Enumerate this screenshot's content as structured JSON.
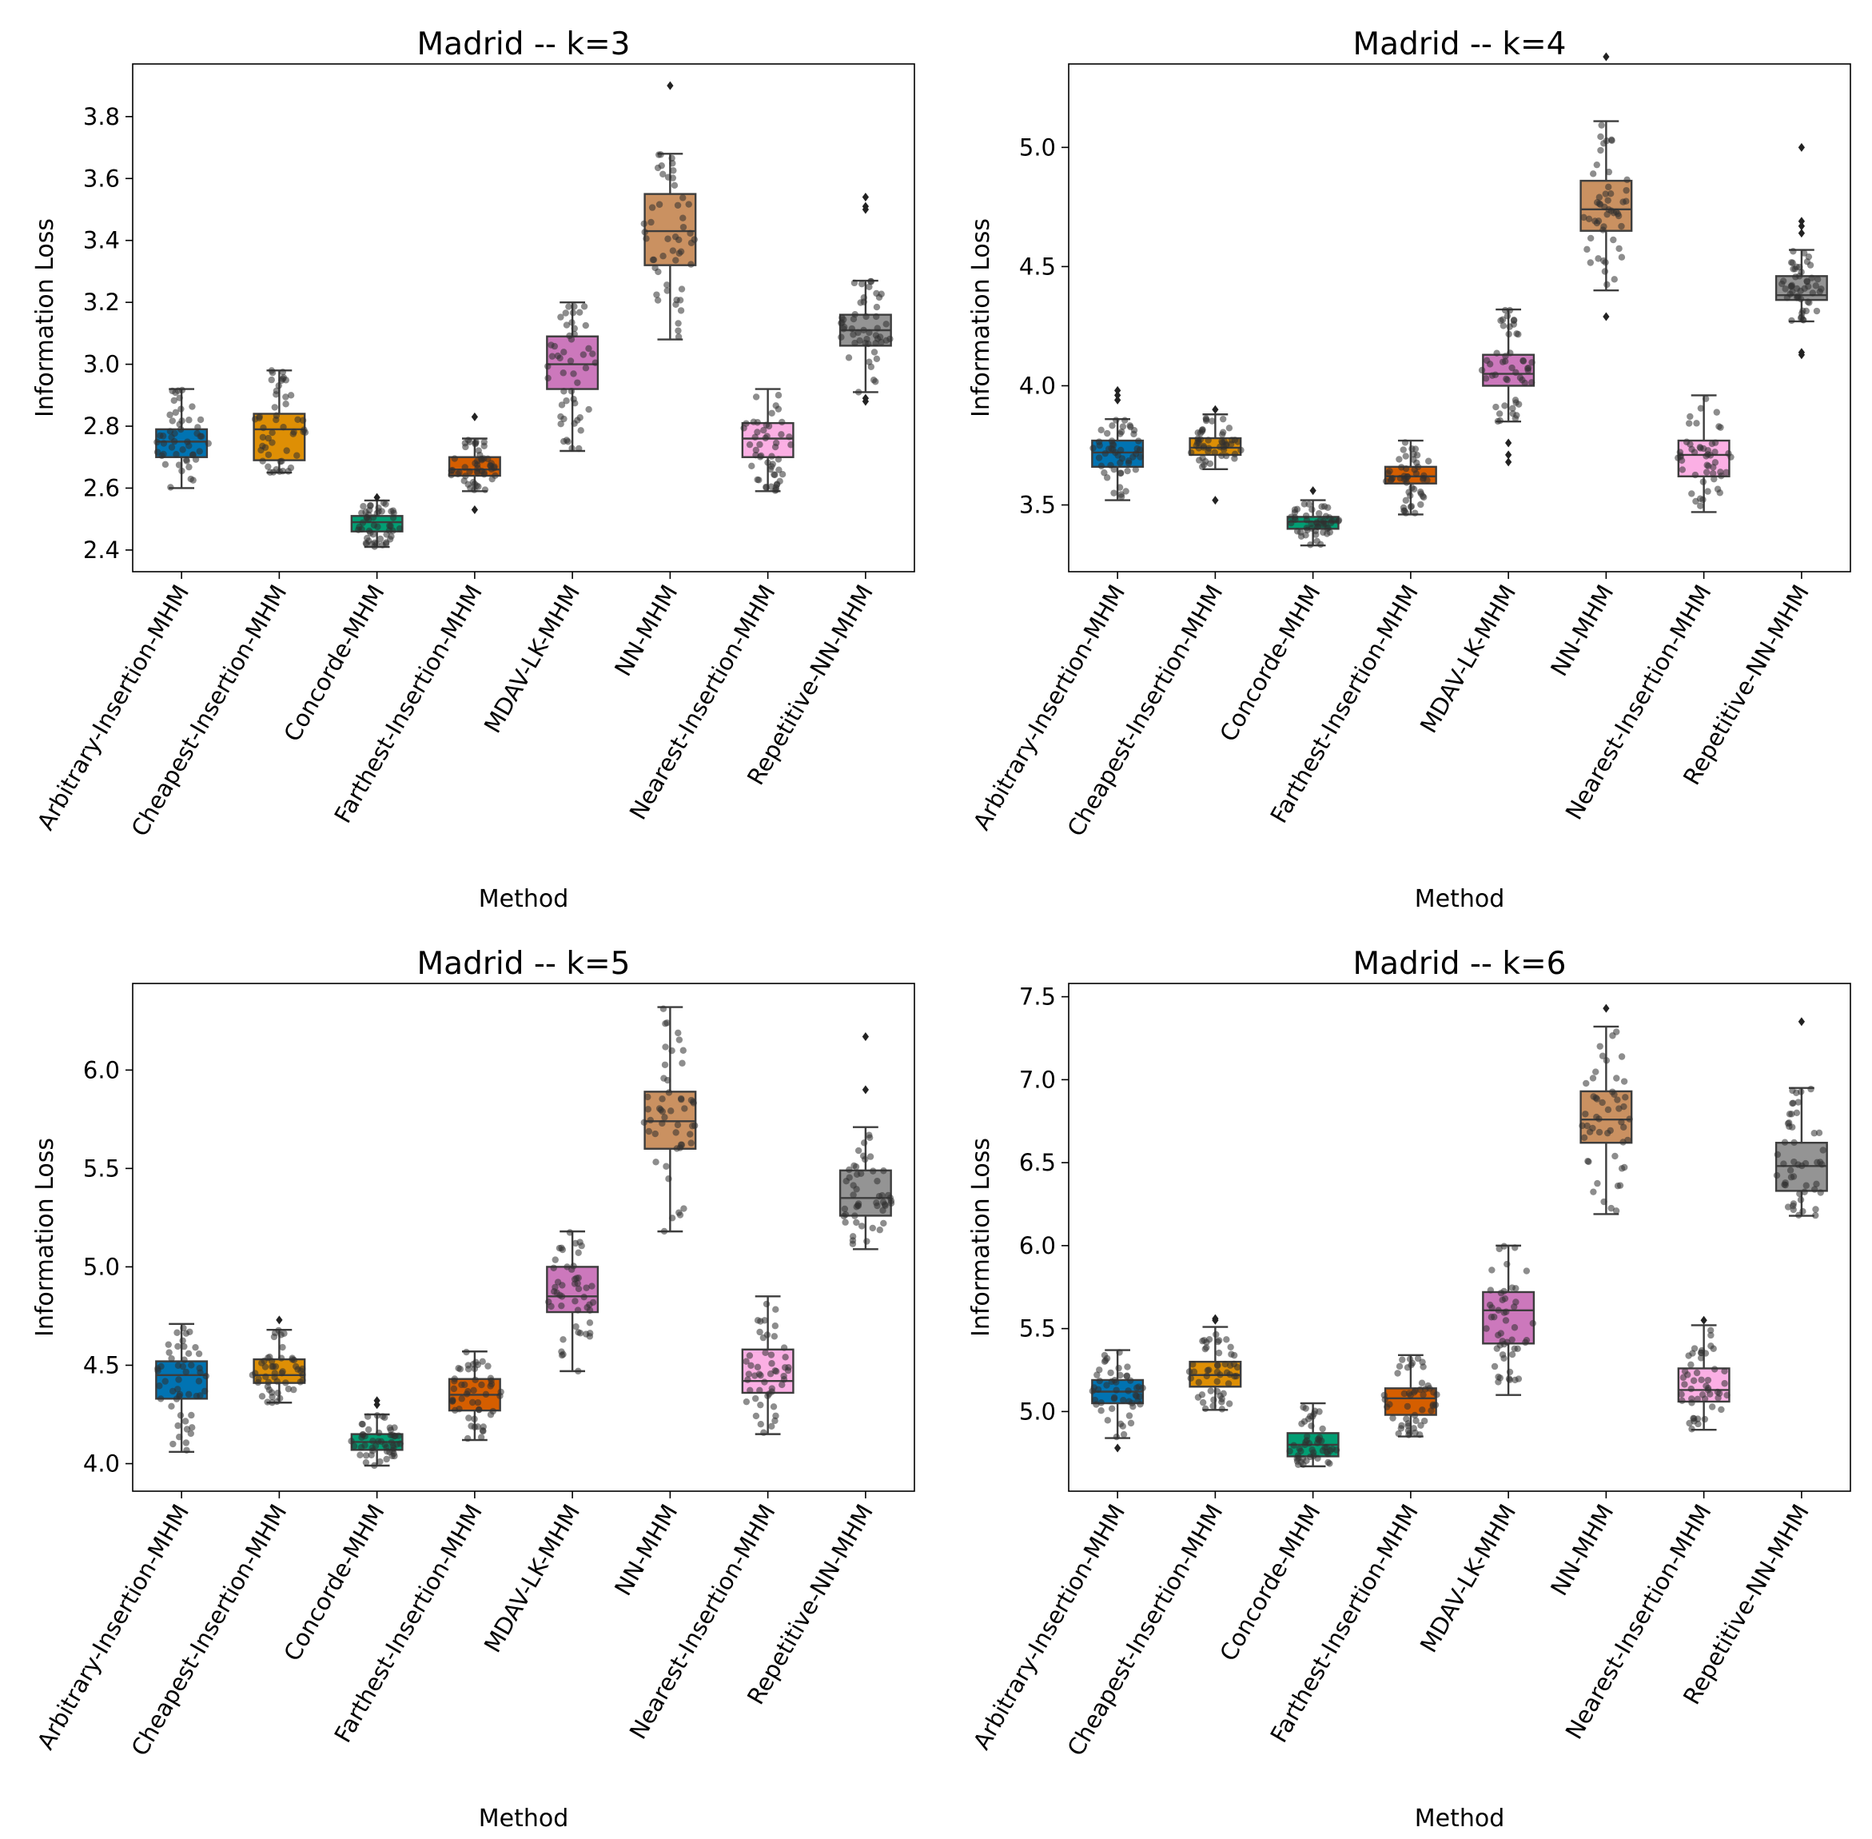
{
  "chart_data": [
    {
      "type": "boxplot",
      "title": "Madrid -- k=3",
      "xlabel": "Method",
      "ylabel": "Information Loss",
      "ylim": [
        2.33,
        3.97
      ],
      "yticks": [
        2.4,
        2.6,
        2.8,
        3.0,
        3.2,
        3.4,
        3.6,
        3.8
      ],
      "ytick_labels": [
        "2.4",
        "2.6",
        "2.8",
        "3.0",
        "3.2",
        "3.4",
        "3.6",
        "3.8"
      ],
      "categories": [
        "Arbitrary-Insertion-MHM",
        "Cheapest-Insertion-MHM",
        "Concorde-MHM",
        "Farthest-Insertion-MHM",
        "MDAV-LK-MHM",
        "NN-MHM",
        "Nearest-Insertion-MHM",
        "Repetitive-NN-MHM"
      ],
      "colors": [
        "#0173b2",
        "#de8f05",
        "#029e73",
        "#d55e00",
        "#cc78bc",
        "#ca9161",
        "#fbafe4",
        "#949494"
      ],
      "boxes": [
        {
          "min": 2.6,
          "q1": 2.7,
          "median": 2.75,
          "q3": 2.79,
          "max": 2.92,
          "outliers": []
        },
        {
          "min": 2.65,
          "q1": 2.69,
          "median": 2.79,
          "q3": 2.84,
          "max": 2.98,
          "outliers": []
        },
        {
          "min": 2.41,
          "q1": 2.46,
          "median": 2.49,
          "q3": 2.51,
          "max": 2.56,
          "outliers": [
            2.57
          ]
        },
        {
          "min": 2.59,
          "q1": 2.64,
          "median": 2.66,
          "q3": 2.7,
          "max": 2.76,
          "outliers": [
            2.53,
            2.83
          ]
        },
        {
          "min": 2.72,
          "q1": 2.92,
          "median": 3.0,
          "q3": 3.09,
          "max": 3.2,
          "outliers": []
        },
        {
          "min": 3.08,
          "q1": 3.32,
          "median": 3.43,
          "q3": 3.55,
          "max": 3.68,
          "outliers": [
            3.9
          ]
        },
        {
          "min": 2.59,
          "q1": 2.7,
          "median": 2.76,
          "q3": 2.81,
          "max": 2.92,
          "outliers": []
        },
        {
          "min": 2.91,
          "q1": 3.06,
          "median": 3.11,
          "q3": 3.16,
          "max": 3.27,
          "outliers": [
            2.88,
            2.89,
            3.5,
            3.51,
            3.54
          ]
        }
      ]
    },
    {
      "type": "boxplot",
      "title": "Madrid -- k=4",
      "xlabel": "Method",
      "ylabel": "Information Loss",
      "ylim": [
        3.22,
        5.35
      ],
      "yticks": [
        3.5,
        4.0,
        4.5,
        5.0
      ],
      "ytick_labels": [
        "3.5",
        "4.0",
        "4.5",
        "5.0"
      ],
      "categories": [
        "Arbitrary-Insertion-MHM",
        "Cheapest-Insertion-MHM",
        "Concorde-MHM",
        "Farthest-Insertion-MHM",
        "MDAV-LK-MHM",
        "NN-MHM",
        "Nearest-Insertion-MHM",
        "Repetitive-NN-MHM"
      ],
      "colors": [
        "#0173b2",
        "#de8f05",
        "#029e73",
        "#d55e00",
        "#cc78bc",
        "#ca9161",
        "#fbafe4",
        "#949494"
      ],
      "boxes": [
        {
          "min": 3.52,
          "q1": 3.66,
          "median": 3.72,
          "q3": 3.77,
          "max": 3.86,
          "outliers": [
            3.94,
            3.96,
            3.98
          ]
        },
        {
          "min": 3.65,
          "q1": 3.71,
          "median": 3.74,
          "q3": 3.78,
          "max": 3.88,
          "outliers": [
            3.52,
            3.9
          ]
        },
        {
          "min": 3.33,
          "q1": 3.4,
          "median": 3.43,
          "q3": 3.45,
          "max": 3.52,
          "outliers": [
            3.56
          ]
        },
        {
          "min": 3.46,
          "q1": 3.59,
          "median": 3.62,
          "q3": 3.66,
          "max": 3.77,
          "outliers": []
        },
        {
          "min": 3.85,
          "q1": 4.0,
          "median": 4.05,
          "q3": 4.13,
          "max": 4.32,
          "outliers": [
            3.68,
            3.71,
            3.76
          ]
        },
        {
          "min": 4.4,
          "q1": 4.65,
          "median": 4.74,
          "q3": 4.86,
          "max": 5.11,
          "outliers": [
            4.29,
            5.38
          ]
        },
        {
          "min": 3.47,
          "q1": 3.62,
          "median": 3.71,
          "q3": 3.77,
          "max": 3.96,
          "outliers": []
        },
        {
          "min": 4.27,
          "q1": 4.36,
          "median": 4.38,
          "q3": 4.46,
          "max": 4.57,
          "outliers": [
            4.13,
            4.14,
            4.64,
            4.67,
            4.69,
            5.0
          ]
        }
      ]
    },
    {
      "type": "boxplot",
      "title": "Madrid -- k=5",
      "xlabel": "Method",
      "ylabel": "Information Loss",
      "ylim": [
        3.86,
        6.44
      ],
      "yticks": [
        4.0,
        4.5,
        5.0,
        5.5,
        6.0
      ],
      "ytick_labels": [
        "4.0",
        "4.5",
        "5.0",
        "5.5",
        "6.0"
      ],
      "categories": [
        "Arbitrary-Insertion-MHM",
        "Cheapest-Insertion-MHM",
        "Concorde-MHM",
        "Farthest-Insertion-MHM",
        "MDAV-LK-MHM",
        "NN-MHM",
        "Nearest-Insertion-MHM",
        "Repetitive-NN-MHM"
      ],
      "colors": [
        "#0173b2",
        "#de8f05",
        "#029e73",
        "#d55e00",
        "#cc78bc",
        "#ca9161",
        "#fbafe4",
        "#949494"
      ],
      "boxes": [
        {
          "min": 4.06,
          "q1": 4.33,
          "median": 4.45,
          "q3": 4.52,
          "max": 4.71,
          "outliers": []
        },
        {
          "min": 4.31,
          "q1": 4.41,
          "median": 4.45,
          "q3": 4.53,
          "max": 4.68,
          "outliers": [
            4.73
          ]
        },
        {
          "min": 3.99,
          "q1": 4.07,
          "median": 4.11,
          "q3": 4.15,
          "max": 4.25,
          "outliers": [
            4.3,
            4.32
          ]
        },
        {
          "min": 4.12,
          "q1": 4.27,
          "median": 4.35,
          "q3": 4.43,
          "max": 4.57,
          "outliers": []
        },
        {
          "min": 4.47,
          "q1": 4.77,
          "median": 4.85,
          "q3": 5.0,
          "max": 5.18,
          "outliers": []
        },
        {
          "min": 5.18,
          "q1": 5.6,
          "median": 5.74,
          "q3": 5.89,
          "max": 6.32,
          "outliers": []
        },
        {
          "min": 4.15,
          "q1": 4.36,
          "median": 4.42,
          "q3": 4.58,
          "max": 4.85,
          "outliers": []
        },
        {
          "min": 5.09,
          "q1": 5.26,
          "median": 5.35,
          "q3": 5.49,
          "max": 5.71,
          "outliers": [
            5.9,
            6.17
          ]
        }
      ]
    },
    {
      "type": "boxplot",
      "title": "Madrid -- k=6",
      "xlabel": "Method",
      "ylabel": "Information Loss",
      "ylim": [
        4.52,
        7.58
      ],
      "yticks": [
        5.0,
        5.5,
        6.0,
        6.5,
        7.0,
        7.5
      ],
      "ytick_labels": [
        "5.0",
        "5.5",
        "6.0",
        "6.5",
        "7.0",
        "7.5"
      ],
      "categories": [
        "Arbitrary-Insertion-MHM",
        "Cheapest-Insertion-MHM",
        "Concorde-MHM",
        "Farthest-Insertion-MHM",
        "MDAV-LK-MHM",
        "NN-MHM",
        "Nearest-Insertion-MHM",
        "Repetitive-NN-MHM"
      ],
      "colors": [
        "#0173b2",
        "#de8f05",
        "#029e73",
        "#d55e00",
        "#cc78bc",
        "#ca9161",
        "#fbafe4",
        "#949494"
      ],
      "boxes": [
        {
          "min": 4.84,
          "q1": 5.05,
          "median": 5.12,
          "q3": 5.19,
          "max": 5.37,
          "outliers": [
            4.78
          ]
        },
        {
          "min": 5.01,
          "q1": 5.15,
          "median": 5.22,
          "q3": 5.3,
          "max": 5.51,
          "outliers": [
            5.55,
            5.56
          ]
        },
        {
          "min": 4.67,
          "q1": 4.73,
          "median": 4.8,
          "q3": 4.87,
          "max": 5.05,
          "outliers": []
        },
        {
          "min": 4.85,
          "q1": 4.98,
          "median": 5.08,
          "q3": 5.14,
          "max": 5.34,
          "outliers": []
        },
        {
          "min": 5.1,
          "q1": 5.41,
          "median": 5.61,
          "q3": 5.72,
          "max": 6.0,
          "outliers": []
        },
        {
          "min": 6.19,
          "q1": 6.62,
          "median": 6.76,
          "q3": 6.93,
          "max": 7.32,
          "outliers": [
            7.43
          ]
        },
        {
          "min": 4.89,
          "q1": 5.06,
          "median": 5.13,
          "q3": 5.26,
          "max": 5.52,
          "outliers": [
            5.55
          ]
        },
        {
          "min": 6.18,
          "q1": 6.33,
          "median": 6.48,
          "q3": 6.62,
          "max": 6.95,
          "outliers": [
            7.35
          ]
        }
      ]
    }
  ]
}
